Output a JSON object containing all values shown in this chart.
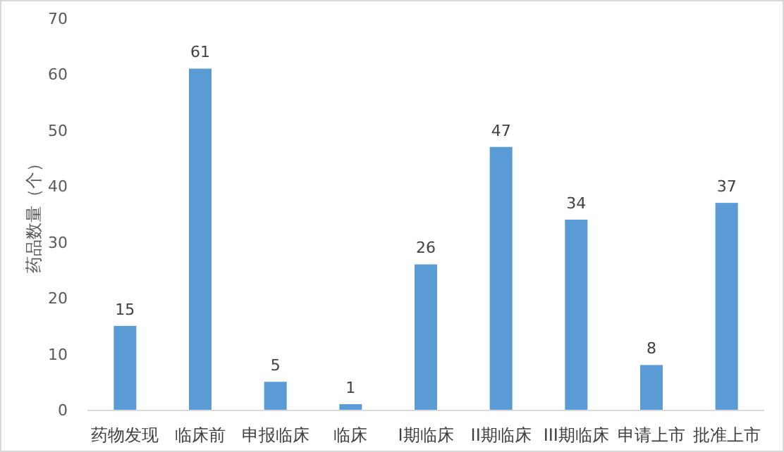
{
  "chart_data": {
    "type": "bar",
    "categories": [
      "药物发现",
      "临床前",
      "申报临床",
      "临床",
      "I期临床",
      "II期临床",
      "III期临床",
      "申请上市",
      "批准上市"
    ],
    "values": [
      15,
      61,
      5,
      1,
      26,
      47,
      34,
      8,
      37
    ],
    "color": "#5b9bd5",
    "ylabel": "药品数量（个）",
    "ylim": [
      0,
      70
    ],
    "yticks": [
      0,
      10,
      20,
      30,
      40,
      50,
      60,
      70
    ],
    "data_labels": true
  }
}
